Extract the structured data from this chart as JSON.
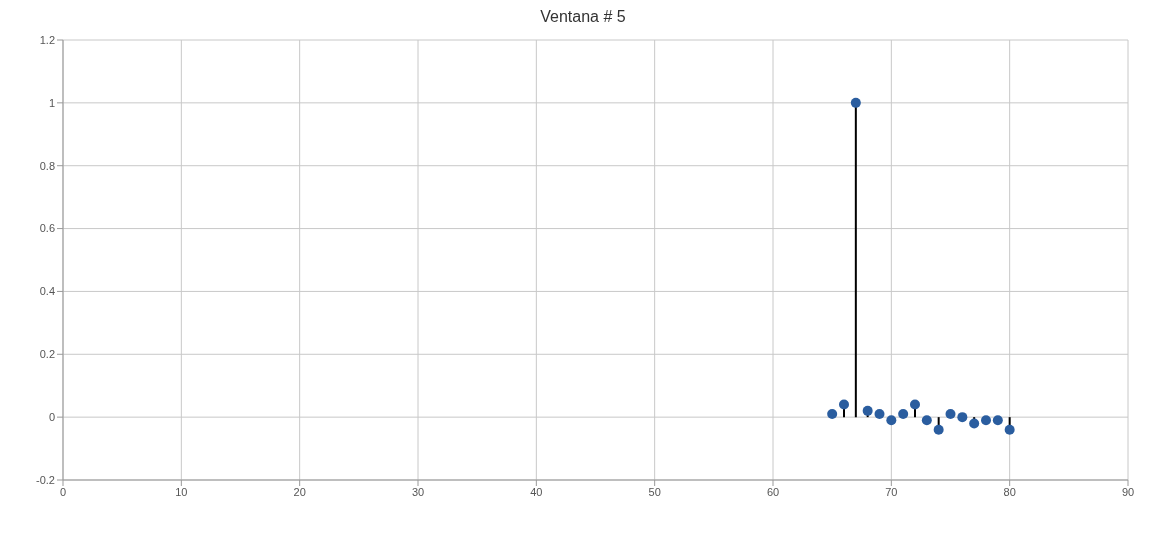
{
  "chart_data": {
    "type": "lollipop",
    "title": "Ventana # 5",
    "x": [
      65,
      66,
      67,
      68,
      69,
      70,
      71,
      72,
      73,
      74,
      75,
      76,
      77,
      78,
      79,
      80
    ],
    "values": [
      0.01,
      0.04,
      1,
      0.02,
      0.01,
      -0.01,
      0.01,
      0.04,
      -0.01,
      -0.04,
      0.01,
      0,
      -0.02,
      -0.01,
      -0.01,
      -0.04
    ],
    "color": "#2a5d9f",
    "xlim": [
      0,
      90
    ],
    "xticks": [
      0,
      10,
      20,
      30,
      40,
      50,
      60,
      70,
      80,
      90
    ],
    "ylim": [
      -0.2,
      1.2
    ],
    "yticks": [
      -0.2,
      0,
      0.2,
      0.4,
      0.6,
      0.8,
      1,
      1.2
    ],
    "grid": true,
    "marker": "circle"
  }
}
